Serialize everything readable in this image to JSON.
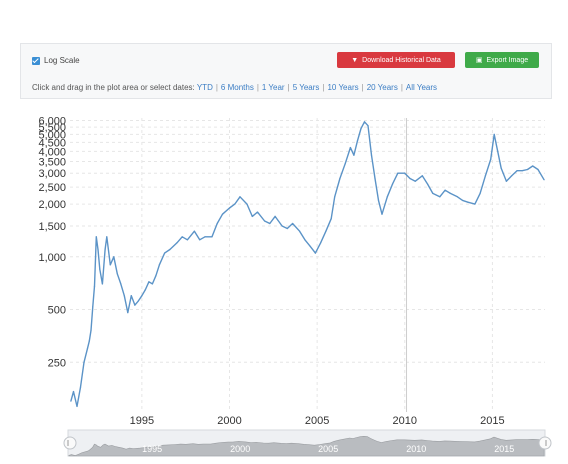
{
  "controls": {
    "log_scale_label": "Log Scale",
    "download_label": "Download Historical Data",
    "export_label": "Export Image",
    "range_prompt": "Click and drag in the plot area or select dates:",
    "ranges": [
      "YTD",
      "6 Months",
      "1 Year",
      "5 Years",
      "10 Years",
      "20 Years",
      "All Years"
    ]
  },
  "colors": {
    "line": "#5b93c7",
    "download_button": "#d9393f",
    "export_button": "#3faa49",
    "link": "#3b7dc4"
  },
  "chart_data": {
    "type": "line",
    "title": "",
    "xlabel": "",
    "ylabel": "",
    "y_scale": "log",
    "grid": true,
    "xlim": [
      1990.9,
      2018.0
    ],
    "ylim": [
      130,
      6200
    ],
    "x_ticks": [
      1995,
      2000,
      2005,
      2010,
      2015
    ],
    "y_ticks": [
      250,
      500,
      1000,
      1500,
      2000,
      2500,
      3000,
      3500,
      4000,
      4500,
      5000,
      5500,
      6000
    ],
    "y_tick_labels": [
      "250",
      "500",
      "1,000",
      "1,500",
      "2,000",
      "2,500",
      "3,000",
      "3,500",
      "4,000",
      "4,500",
      "5,000",
      "5,500",
      "6,000"
    ],
    "series": [
      {
        "x": [
          1990.95,
          1991.1,
          1991.3,
          1991.5,
          1991.7,
          1991.9,
          1992.0,
          1992.1,
          1992.2,
          1992.3,
          1992.4,
          1992.5,
          1992.6,
          1992.75,
          1992.9,
          1993.0,
          1993.2,
          1993.4,
          1993.6,
          1993.8,
          1994.0,
          1994.2,
          1994.4,
          1994.6,
          1994.8,
          1995.0,
          1995.2,
          1995.4,
          1995.6,
          1995.8,
          1996.0,
          1996.3,
          1996.6,
          1997.0,
          1997.3,
          1997.6,
          1998.0,
          1998.3,
          1998.6,
          1999.0,
          1999.3,
          1999.6,
          2000.0,
          2000.3,
          2000.6,
          2001.0,
          2001.3,
          2001.6,
          2002.0,
          2002.3,
          2002.6,
          2003.0,
          2003.3,
          2003.6,
          2004.0,
          2004.3,
          2004.6,
          2004.9,
          2005.2,
          2005.5,
          2005.8,
          2006.0,
          2006.3,
          2006.6,
          2006.9,
          2007.1,
          2007.3,
          2007.5,
          2007.7,
          2007.9,
          2008.1,
          2008.3,
          2008.5,
          2008.7,
          2009.0,
          2009.3,
          2009.6,
          2010.0,
          2010.3,
          2010.6,
          2011.0,
          2011.3,
          2011.6,
          2012.0,
          2012.3,
          2012.6,
          2013.0,
          2013.3,
          2013.6,
          2014.0,
          2014.3,
          2014.6,
          2014.9,
          2015.1,
          2015.3,
          2015.5,
          2015.8,
          2016.1,
          2016.4,
          2016.7,
          2017.0,
          2017.3,
          2017.6,
          2017.95
        ],
        "values": [
          150,
          170,
          140,
          180,
          250,
          300,
          330,
          380,
          520,
          680,
          1300,
          1100,
          850,
          700,
          1100,
          1300,
          900,
          1000,
          800,
          700,
          600,
          480,
          600,
          530,
          560,
          600,
          650,
          720,
          700,
          780,
          900,
          1050,
          1100,
          1200,
          1300,
          1250,
          1400,
          1250,
          1300,
          1300,
          1550,
          1750,
          1900,
          2000,
          2200,
          2000,
          1700,
          1800,
          1600,
          1550,
          1700,
          1500,
          1450,
          1550,
          1400,
          1250,
          1150,
          1050,
          1200,
          1400,
          1650,
          2200,
          2800,
          3400,
          4200,
          3800,
          4600,
          5400,
          5900,
          5600,
          3800,
          2800,
          2100,
          1750,
          2200,
          2600,
          3000,
          3000,
          2800,
          2700,
          2900,
          2600,
          2300,
          2200,
          2400,
          2300,
          2200,
          2100,
          2050,
          2000,
          2300,
          2900,
          3600,
          5000,
          4000,
          3200,
          2700,
          2900,
          3100,
          3100,
          3150,
          3300,
          3150,
          2750
        ]
      }
    ]
  }
}
